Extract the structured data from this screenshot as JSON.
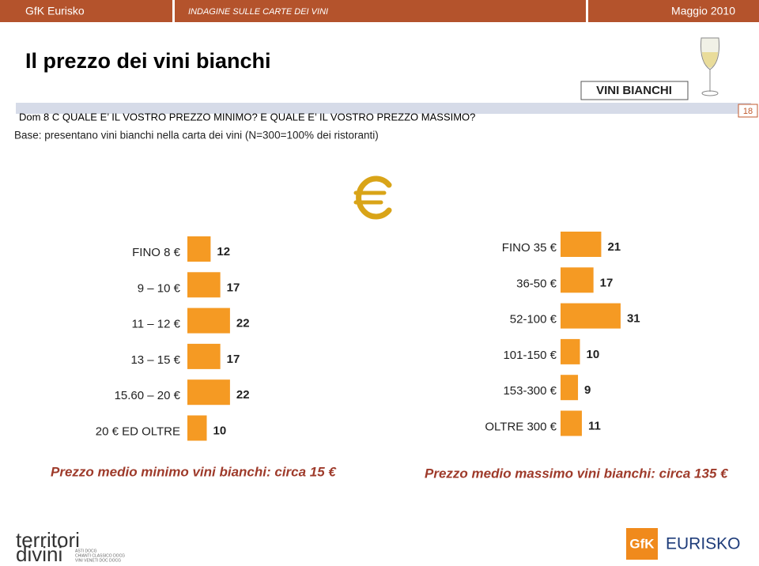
{
  "header": {
    "brand": "GfK Eurisko",
    "survey": "INDAGINE SULLE CARTE DEI VINI",
    "date": "Maggio 2010"
  },
  "title": "Il prezzo dei vini bianchi",
  "tag": "VINI BIANCHI",
  "page_number": "18",
  "question": "Dom 8 C QUALE E’ IL VOSTRO PREZZO MINIMO? E QUALE E’ IL VOSTRO PREZZO MASSIMO?",
  "base": "Base: presentano vini bianchi nella carta dei vini (N=300=100% dei ristoranti)",
  "chart_data": [
    {
      "type": "bar",
      "orientation": "horizontal",
      "color": "#f59a23",
      "categories": [
        "FINO 8 €",
        "9 – 10 €",
        "11 – 12 €",
        "13 – 15 €",
        "15.60 – 20 €",
        "20 € ED OLTRE"
      ],
      "values": [
        12,
        17,
        22,
        17,
        22,
        10
      ],
      "annotation": "Prezzo medio minimo vini bianchi: circa 15 €"
    },
    {
      "type": "bar",
      "orientation": "horizontal",
      "color": "#f59a23",
      "categories": [
        "FINO 35 €",
        "36-50 €",
        "52-100 €",
        "101-150 €",
        "153-300 €",
        "OLTRE 300 €"
      ],
      "values": [
        21,
        17,
        31,
        10,
        9,
        11
      ],
      "annotation": "Prezzo medio massimo vini bianchi: circa 135 €"
    }
  ],
  "logos": {
    "territori": "territori",
    "divini": "divini",
    "sub": [
      "ASTI DOCG",
      "CHIANTI CLASSICO DOCG",
      "VINI VENETI DOC DOCG"
    ],
    "gfk": "GfK",
    "eurisko": "EURISKO"
  }
}
